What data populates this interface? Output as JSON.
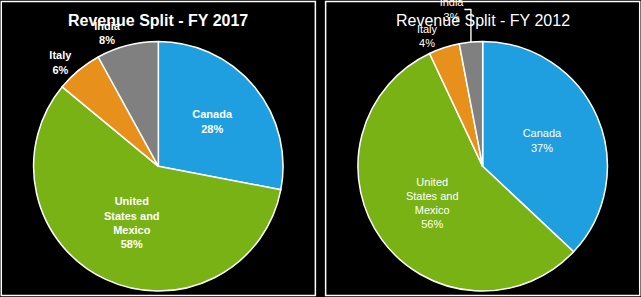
{
  "chart_data": [
    {
      "type": "pie",
      "title": "Revenue Split - FY 2017",
      "categories": [
        "Canada",
        "United States and Mexico",
        "Italy",
        "India"
      ],
      "values": [
        28,
        58,
        6,
        8
      ],
      "value_labels": [
        "28%",
        "58%",
        "6%",
        "8%"
      ],
      "colors": [
        "#1f9fe0",
        "#79b215",
        "#e8901c",
        "#808080"
      ],
      "data_labels": true
    },
    {
      "type": "pie",
      "title": "Revenue Split - FY 2012",
      "categories": [
        "Canada",
        "United States and Mexico",
        "Italy",
        "India"
      ],
      "values": [
        37,
        56,
        4,
        3
      ],
      "value_labels": [
        "37%",
        "56%",
        "4%",
        "3%"
      ],
      "colors": [
        "#1f9fe0",
        "#79b215",
        "#e8901c",
        "#808080"
      ],
      "data_labels": true
    }
  ]
}
